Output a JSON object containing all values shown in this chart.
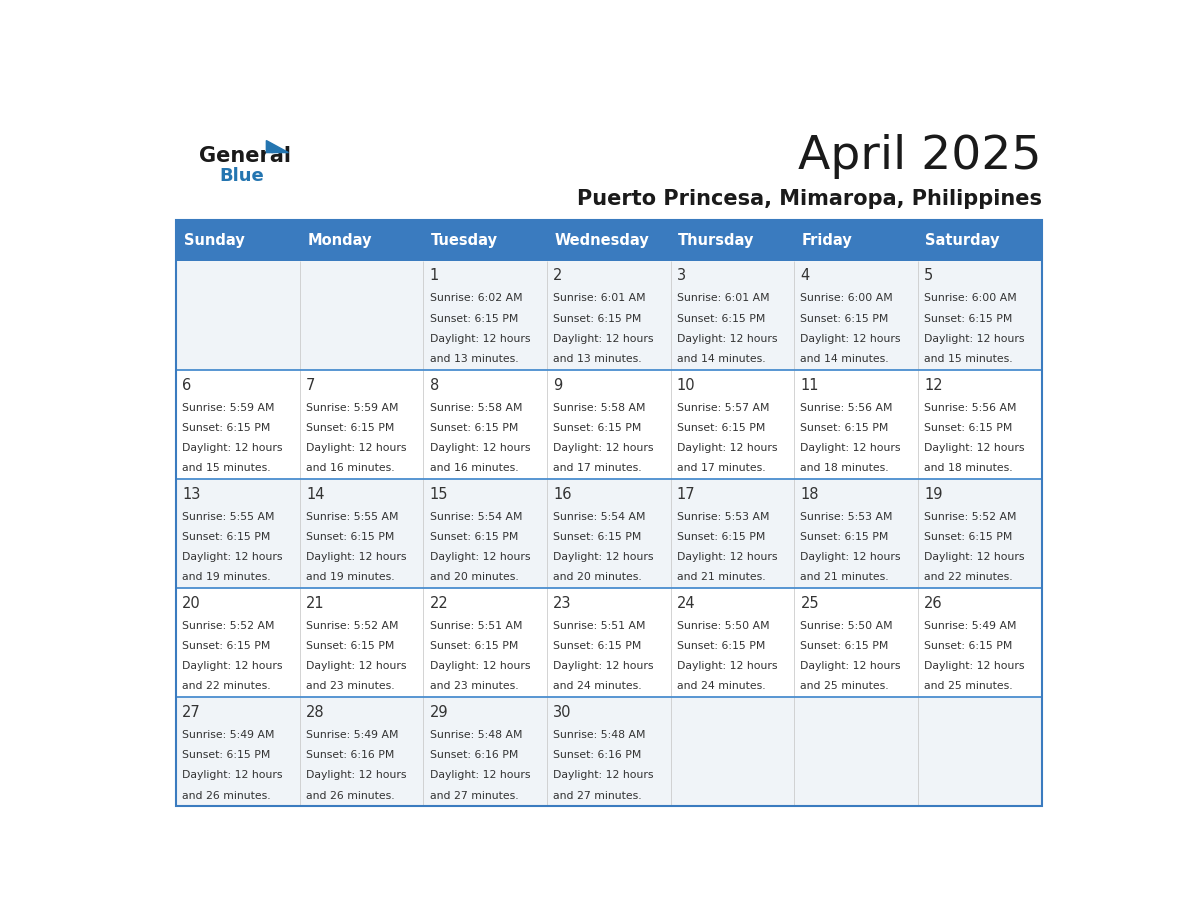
{
  "title": "April 2025",
  "subtitle": "Puerto Princesa, Mimaropa, Philippines",
  "days_of_week": [
    "Sunday",
    "Monday",
    "Tuesday",
    "Wednesday",
    "Thursday",
    "Friday",
    "Saturday"
  ],
  "header_bg": "#3a7bbf",
  "header_text_color": "#ffffff",
  "row_bg_even": "#f0f4f8",
  "row_bg_odd": "#ffffff",
  "border_color": "#3a7bbf",
  "divider_color": "#4a8ecf",
  "text_color": "#333333",
  "calendar": [
    [
      null,
      null,
      {
        "day": 1,
        "sunrise": "6:02 AM",
        "sunset": "6:15 PM",
        "daylight_extra": "13 minutes."
      },
      {
        "day": 2,
        "sunrise": "6:01 AM",
        "sunset": "6:15 PM",
        "daylight_extra": "13 minutes."
      },
      {
        "day": 3,
        "sunrise": "6:01 AM",
        "sunset": "6:15 PM",
        "daylight_extra": "14 minutes."
      },
      {
        "day": 4,
        "sunrise": "6:00 AM",
        "sunset": "6:15 PM",
        "daylight_extra": "14 minutes."
      },
      {
        "day": 5,
        "sunrise": "6:00 AM",
        "sunset": "6:15 PM",
        "daylight_extra": "15 minutes."
      }
    ],
    [
      {
        "day": 6,
        "sunrise": "5:59 AM",
        "sunset": "6:15 PM",
        "daylight_extra": "15 minutes."
      },
      {
        "day": 7,
        "sunrise": "5:59 AM",
        "sunset": "6:15 PM",
        "daylight_extra": "16 minutes."
      },
      {
        "day": 8,
        "sunrise": "5:58 AM",
        "sunset": "6:15 PM",
        "daylight_extra": "16 minutes."
      },
      {
        "day": 9,
        "sunrise": "5:58 AM",
        "sunset": "6:15 PM",
        "daylight_extra": "17 minutes."
      },
      {
        "day": 10,
        "sunrise": "5:57 AM",
        "sunset": "6:15 PM",
        "daylight_extra": "17 minutes."
      },
      {
        "day": 11,
        "sunrise": "5:56 AM",
        "sunset": "6:15 PM",
        "daylight_extra": "18 minutes."
      },
      {
        "day": 12,
        "sunrise": "5:56 AM",
        "sunset": "6:15 PM",
        "daylight_extra": "18 minutes."
      }
    ],
    [
      {
        "day": 13,
        "sunrise": "5:55 AM",
        "sunset": "6:15 PM",
        "daylight_extra": "19 minutes."
      },
      {
        "day": 14,
        "sunrise": "5:55 AM",
        "sunset": "6:15 PM",
        "daylight_extra": "19 minutes."
      },
      {
        "day": 15,
        "sunrise": "5:54 AM",
        "sunset": "6:15 PM",
        "daylight_extra": "20 minutes."
      },
      {
        "day": 16,
        "sunrise": "5:54 AM",
        "sunset": "6:15 PM",
        "daylight_extra": "20 minutes."
      },
      {
        "day": 17,
        "sunrise": "5:53 AM",
        "sunset": "6:15 PM",
        "daylight_extra": "21 minutes."
      },
      {
        "day": 18,
        "sunrise": "5:53 AM",
        "sunset": "6:15 PM",
        "daylight_extra": "21 minutes."
      },
      {
        "day": 19,
        "sunrise": "5:52 AM",
        "sunset": "6:15 PM",
        "daylight_extra": "22 minutes."
      }
    ],
    [
      {
        "day": 20,
        "sunrise": "5:52 AM",
        "sunset": "6:15 PM",
        "daylight_extra": "22 minutes."
      },
      {
        "day": 21,
        "sunrise": "5:52 AM",
        "sunset": "6:15 PM",
        "daylight_extra": "23 minutes."
      },
      {
        "day": 22,
        "sunrise": "5:51 AM",
        "sunset": "6:15 PM",
        "daylight_extra": "23 minutes."
      },
      {
        "day": 23,
        "sunrise": "5:51 AM",
        "sunset": "6:15 PM",
        "daylight_extra": "24 minutes."
      },
      {
        "day": 24,
        "sunrise": "5:50 AM",
        "sunset": "6:15 PM",
        "daylight_extra": "24 minutes."
      },
      {
        "day": 25,
        "sunrise": "5:50 AM",
        "sunset": "6:15 PM",
        "daylight_extra": "25 minutes."
      },
      {
        "day": 26,
        "sunrise": "5:49 AM",
        "sunset": "6:15 PM",
        "daylight_extra": "25 minutes."
      }
    ],
    [
      {
        "day": 27,
        "sunrise": "5:49 AM",
        "sunset": "6:15 PM",
        "daylight_extra": "26 minutes."
      },
      {
        "day": 28,
        "sunrise": "5:49 AM",
        "sunset": "6:16 PM",
        "daylight_extra": "26 minutes."
      },
      {
        "day": 29,
        "sunrise": "5:48 AM",
        "sunset": "6:16 PM",
        "daylight_extra": "27 minutes."
      },
      {
        "day": 30,
        "sunrise": "5:48 AM",
        "sunset": "6:16 PM",
        "daylight_extra": "27 minutes."
      },
      null,
      null,
      null
    ]
  ]
}
